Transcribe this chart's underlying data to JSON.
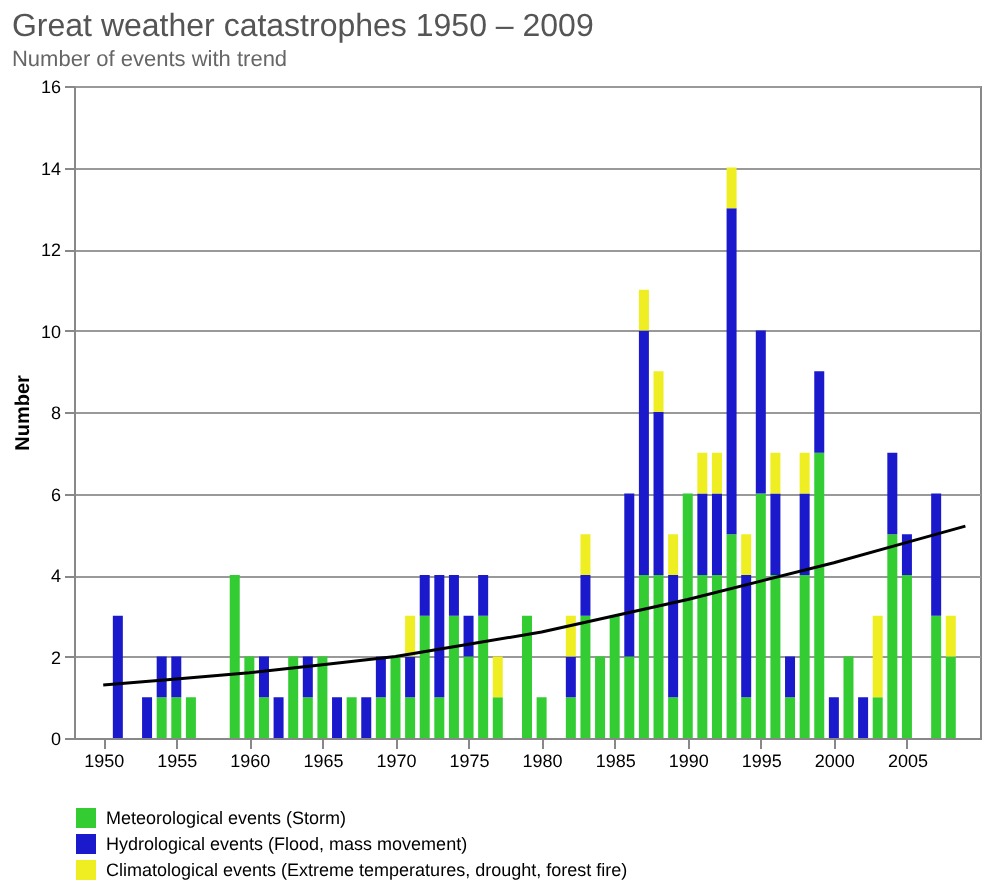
{
  "chart_data": {
    "type": "bar",
    "title": "Great weather catastrophes 1950 – 2009",
    "subtitle": "Number of events with trend",
    "ylabel": "Number",
    "x": [
      1951,
      1952,
      1953,
      1954,
      1955,
      1956,
      1957,
      1958,
      1959,
      1960,
      1961,
      1962,
      1963,
      1964,
      1965,
      1966,
      1967,
      1968,
      1969,
      1970,
      1971,
      1972,
      1973,
      1974,
      1975,
      1976,
      1977,
      1978,
      1979,
      1980,
      1981,
      1982,
      1983,
      1984,
      1985,
      1986,
      1987,
      1988,
      1989,
      1990,
      1991,
      1992,
      1993,
      1994,
      1995,
      1996,
      1997,
      1998,
      1999,
      2000,
      2001,
      2002,
      2003,
      2004,
      2005,
      2006,
      2007,
      2008
    ],
    "stacked": true,
    "series": [
      {
        "name": "Meteorological events (Storm)",
        "color": "#33cc33",
        "values": [
          null,
          null,
          null,
          1,
          1,
          1,
          null,
          null,
          4,
          2,
          1,
          null,
          2,
          1,
          2,
          null,
          1,
          null,
          1,
          2,
          1,
          3,
          1,
          3,
          2,
          3,
          1,
          null,
          3,
          1,
          null,
          1,
          3,
          2,
          3,
          2,
          4,
          4,
          1,
          6,
          4,
          4,
          5,
          1,
          6,
          4,
          1,
          4,
          7,
          null,
          2,
          null,
          1,
          5,
          4,
          null,
          3,
          2
        ]
      },
      {
        "name": "Hydrological events (Flood, mass movement)",
        "color": "#1a1acc",
        "values": [
          3,
          null,
          1,
          1,
          1,
          null,
          null,
          null,
          null,
          null,
          1,
          1,
          null,
          1,
          null,
          1,
          null,
          1,
          1,
          null,
          1,
          1,
          3,
          1,
          1,
          1,
          null,
          null,
          null,
          null,
          null,
          1,
          1,
          null,
          null,
          4,
          6,
          4,
          3,
          null,
          2,
          2,
          8,
          3,
          4,
          2,
          1,
          2,
          2,
          1,
          null,
          1,
          null,
          2,
          1,
          null,
          3,
          null
        ]
      },
      {
        "name": "Climatological events (Extreme temperatures, drought, forest fire)",
        "color": "#eeee22",
        "values": [
          null,
          null,
          null,
          null,
          null,
          null,
          null,
          null,
          null,
          null,
          null,
          null,
          null,
          null,
          null,
          null,
          null,
          null,
          null,
          null,
          1,
          null,
          null,
          null,
          null,
          null,
          1,
          null,
          null,
          null,
          null,
          1,
          1,
          null,
          null,
          null,
          1,
          1,
          1,
          null,
          1,
          1,
          1,
          1,
          null,
          1,
          null,
          1,
          null,
          null,
          null,
          null,
          2,
          null,
          null,
          null,
          null,
          1
        ]
      },
      {
        "type": "line",
        "color": "#000000",
        "x": [
          1950,
          1955,
          1960,
          1965,
          1970,
          1975,
          1980,
          1985,
          1990,
          1995,
          2000,
          2005,
          2009
        ],
        "values": [
          1.3,
          1.45,
          1.6,
          1.8,
          2.0,
          2.3,
          2.6,
          3.0,
          3.4,
          3.85,
          4.3,
          4.8,
          5.2
        ]
      }
    ],
    "xlim": [
      1948,
      2010
    ],
    "xticks": [
      1950,
      1955,
      1960,
      1965,
      1970,
      1975,
      1980,
      1985,
      1990,
      1995,
      2000,
      2005
    ],
    "ylim": [
      0,
      16
    ],
    "yticks": [
      0,
      2,
      4,
      6,
      8,
      10,
      12,
      14,
      16
    ],
    "grid": "y",
    "legend": "bottom"
  }
}
